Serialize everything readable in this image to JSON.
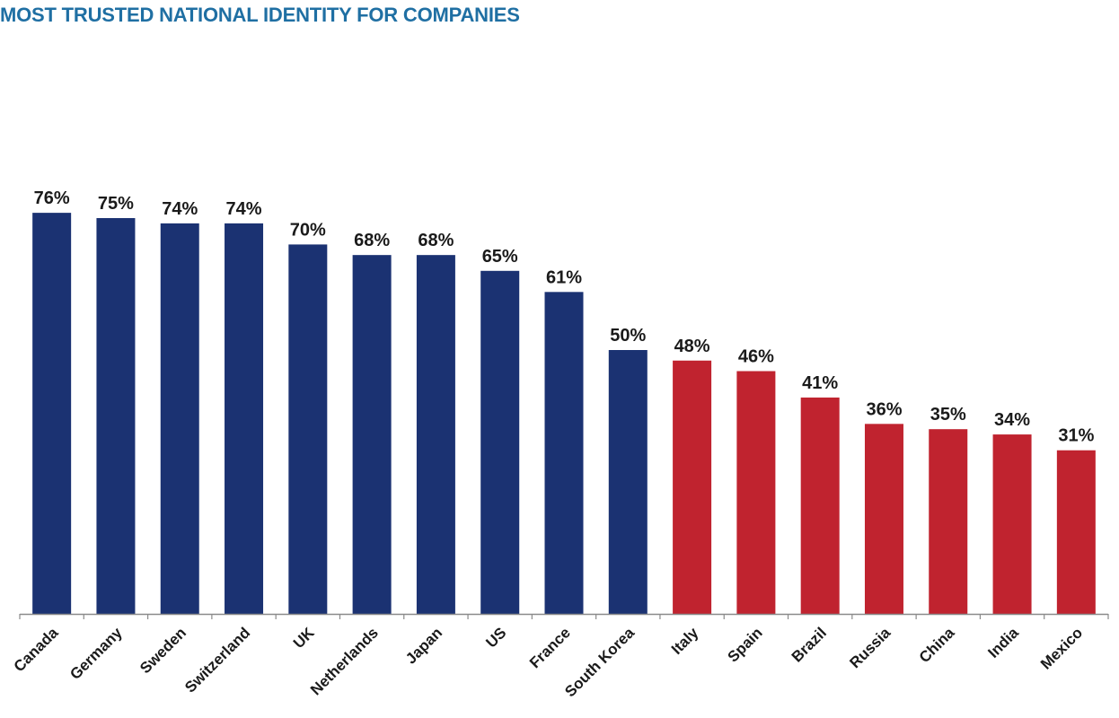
{
  "colors": {
    "title": "#1f6fa3",
    "primary_bar": "#1b3272",
    "secondary_bar": "#c0232f",
    "axis": "#8a8a8a"
  },
  "chart_data": {
    "type": "bar",
    "title": "MOST TRUSTED NATIONAL IDENTITY FOR COMPANIES",
    "xlabel": "",
    "ylabel": "",
    "ylim": [
      0,
      100
    ],
    "grid": false,
    "legend": "none",
    "value_format": "percent",
    "categories": [
      "Canada",
      "Germany",
      "Sweden",
      "Switzerland",
      "UK",
      "Netherlands",
      "Japan",
      "US",
      "France",
      "South Korea",
      "Italy",
      "Spain",
      "Brazil",
      "Russia",
      "China",
      "India",
      "Mexico"
    ],
    "values": [
      76,
      75,
      74,
      74,
      70,
      68,
      68,
      65,
      61,
      50,
      48,
      46,
      41,
      36,
      35,
      34,
      31
    ],
    "data_labels": [
      "76%",
      "75%",
      "74%",
      "74%",
      "70%",
      "68%",
      "68%",
      "65%",
      "61%",
      "50%",
      "48%",
      "46%",
      "41%",
      "36%",
      "35%",
      "34%",
      "31%"
    ],
    "bar_groups": [
      "primary",
      "primary",
      "primary",
      "primary",
      "primary",
      "primary",
      "primary",
      "primary",
      "primary",
      "primary",
      "secondary",
      "secondary",
      "secondary",
      "secondary",
      "secondary",
      "secondary",
      "secondary"
    ]
  }
}
